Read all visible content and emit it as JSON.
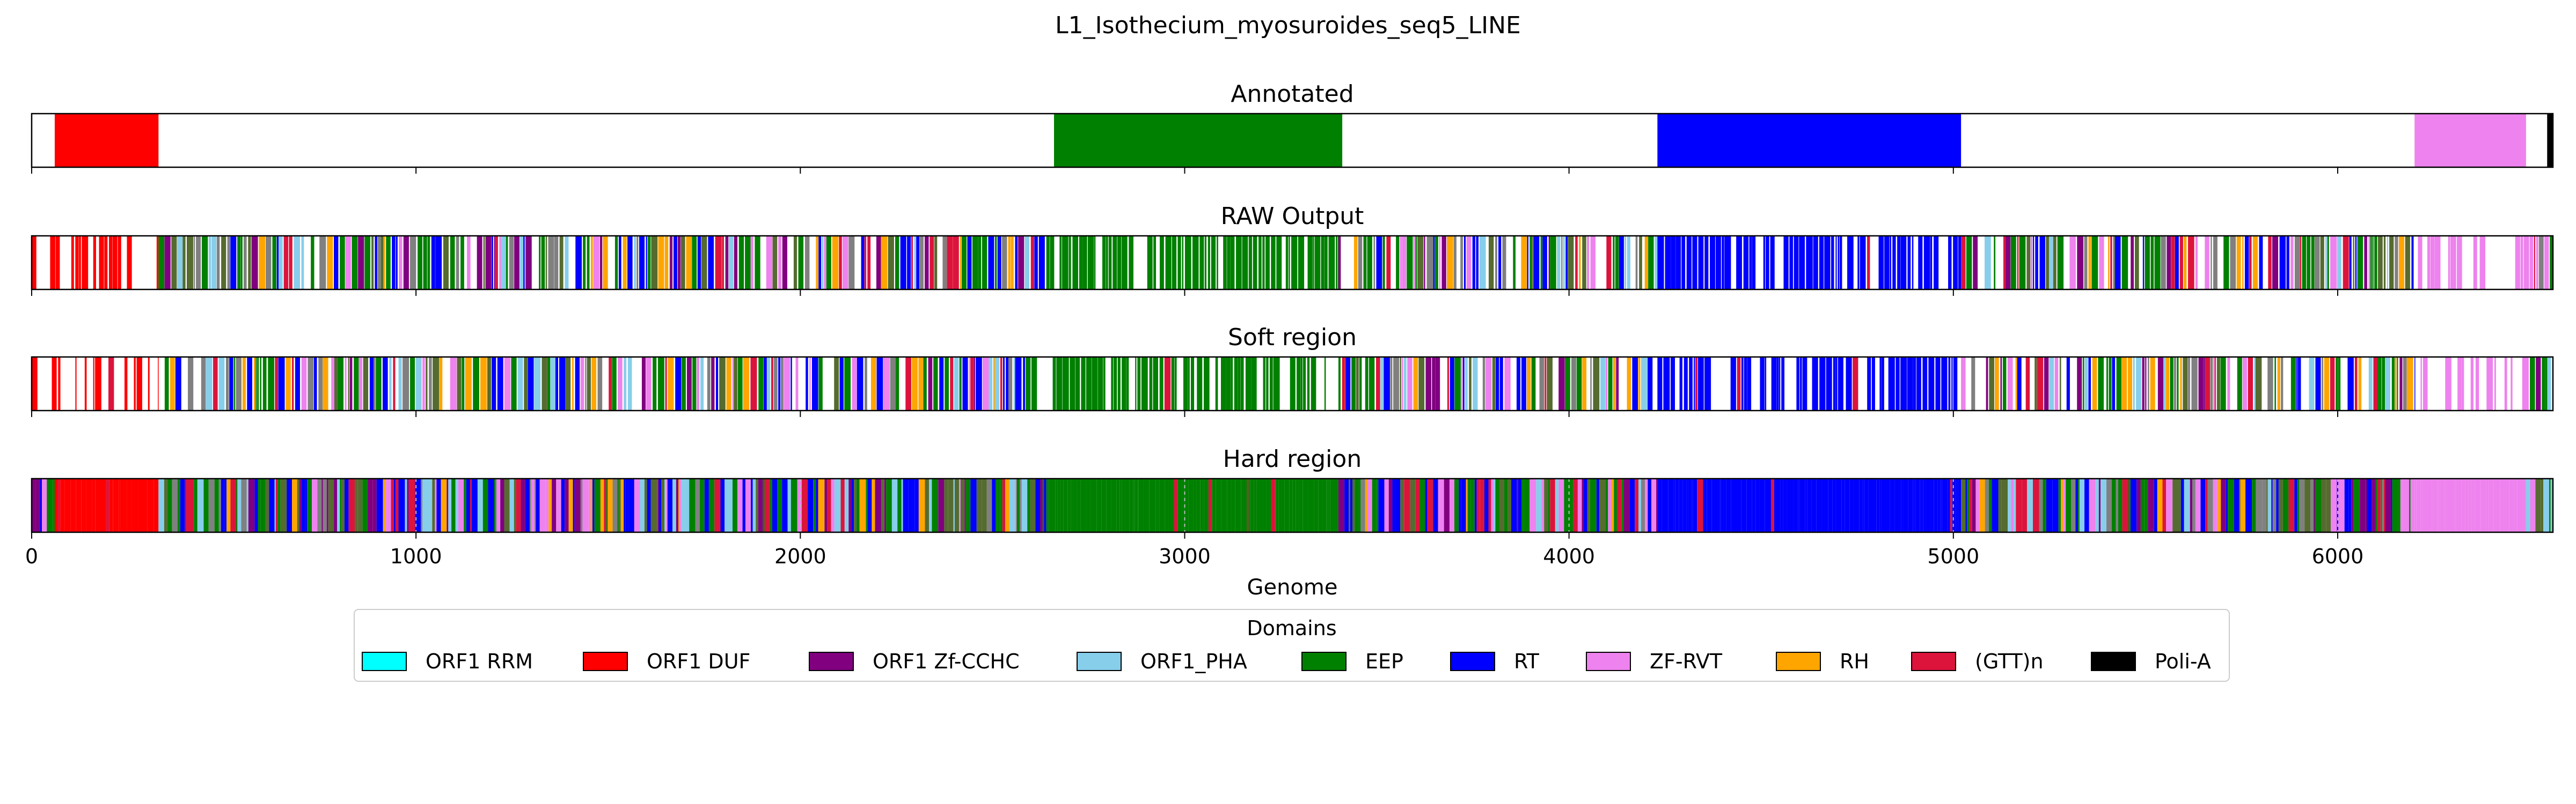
{
  "figure": {
    "title": "L1_Isothecium_myosuroides_seq5_LINE"
  },
  "chart_data": {
    "type": "bar",
    "orientation": "horizontal-track",
    "xlabel": "Genome",
    "xlim": [
      0,
      6560
    ],
    "xticks": [
      0,
      1000,
      2000,
      3000,
      4000,
      5000,
      6000
    ],
    "xtick_labels": [
      "0",
      "1000",
      "2000",
      "3000",
      "4000",
      "5000",
      "6000"
    ],
    "legend": {
      "title": "Domains",
      "placement": "bottom-center",
      "entries": [
        {
          "label": "ORF1 RRM",
          "color": "#00ffff"
        },
        {
          "label": "ORF1 DUF",
          "color": "#ff0000"
        },
        {
          "label": "ORF1 Zf-CCHC",
          "color": "#800080"
        },
        {
          "label": "ORF1_PHA",
          "color": "#87ceeb"
        },
        {
          "label": "EEP",
          "color": "#008000"
        },
        {
          "label": "RT",
          "color": "#0000ff"
        },
        {
          "label": "ZF-RVT",
          "color": "#ee82ee"
        },
        {
          "label": "RH",
          "color": "#ffa500"
        },
        {
          "label": "(GTT)n",
          "color": "#dc143c"
        },
        {
          "label": "Poli-A",
          "color": "#000000"
        }
      ]
    },
    "panels": [
      {
        "title": "Annotated",
        "segments": [
          {
            "domain": "ORF1 DUF",
            "start": 60,
            "end": 330
          },
          {
            "domain": "EEP",
            "start": 2660,
            "end": 3410
          },
          {
            "domain": "RT",
            "start": 4230,
            "end": 5020
          },
          {
            "domain": "ZF-RVT",
            "start": 6200,
            "end": 6490
          },
          {
            "domain": "Poli-A",
            "start": 6545,
            "end": 6560
          }
        ]
      },
      {
        "title": "RAW Output",
        "regions": [
          {
            "domain": "ORF1 DUF",
            "start": 0,
            "end": 330,
            "fill": 0.55
          },
          {
            "domain": "mixed",
            "start": 330,
            "end": 2640,
            "fill": 0.9
          },
          {
            "domain": "EEP",
            "start": 2640,
            "end": 3400,
            "fill": 0.85
          },
          {
            "domain": "mixed",
            "start": 3400,
            "end": 4230,
            "fill": 0.9
          },
          {
            "domain": "RT",
            "start": 4230,
            "end": 5020,
            "fill": 0.8
          },
          {
            "domain": "mixed",
            "start": 5020,
            "end": 6200,
            "fill": 0.9
          },
          {
            "domain": "ZF-RVT",
            "start": 6200,
            "end": 6500,
            "fill": 0.45
          },
          {
            "domain": "mixed",
            "start": 6500,
            "end": 6560,
            "fill": 0.9
          }
        ]
      },
      {
        "title": "Soft region",
        "regions": [
          {
            "domain": "ORF1 DUF",
            "start": 0,
            "end": 330,
            "fill": 0.55
          },
          {
            "domain": "mixed",
            "start": 330,
            "end": 2640,
            "fill": 0.9
          },
          {
            "domain": "EEP",
            "start": 2640,
            "end": 3400,
            "fill": 0.85
          },
          {
            "domain": "mixed",
            "start": 3400,
            "end": 4230,
            "fill": 0.9
          },
          {
            "domain": "RT",
            "start": 4230,
            "end": 5020,
            "fill": 0.8
          },
          {
            "domain": "mixed",
            "start": 5020,
            "end": 6200,
            "fill": 0.9
          },
          {
            "domain": "ZF-RVT",
            "start": 6200,
            "end": 6500,
            "fill": 0.45
          },
          {
            "domain": "mixed",
            "start": 6500,
            "end": 6560,
            "fill": 0.9
          }
        ]
      },
      {
        "title": "Hard region",
        "regions": [
          {
            "domain": "mixed",
            "start": 0,
            "end": 60,
            "fill": 1
          },
          {
            "domain": "ORF1 DUF",
            "start": 60,
            "end": 330,
            "fill": 1
          },
          {
            "domain": "mixed",
            "start": 330,
            "end": 2640,
            "fill": 1
          },
          {
            "domain": "EEP",
            "start": 2640,
            "end": 3400,
            "fill": 1
          },
          {
            "domain": "mixed",
            "start": 3400,
            "end": 4230,
            "fill": 1
          },
          {
            "domain": "RT",
            "start": 4230,
            "end": 5020,
            "fill": 1
          },
          {
            "domain": "mixed",
            "start": 5020,
            "end": 6200,
            "fill": 1
          },
          {
            "domain": "ZF-RVT",
            "start": 6200,
            "end": 6490,
            "fill": 1
          },
          {
            "domain": "mixed",
            "start": 6490,
            "end": 6560,
            "fill": 1
          }
        ]
      }
    ]
  }
}
